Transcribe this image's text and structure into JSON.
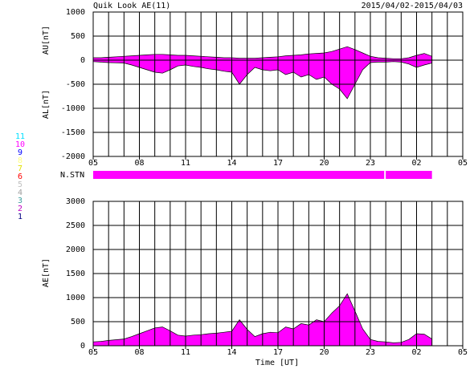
{
  "title": "Quik Look AE(11)",
  "date_range": "2015/04/02-2015/04/03",
  "station_legend": {
    "labels": [
      "11",
      "10",
      "9",
      "8",
      "7",
      "6",
      "5",
      "4",
      "3",
      "2",
      "1"
    ],
    "colors": [
      "#00e0ff",
      "#ff00ff",
      "#0000ff",
      "#ffff80",
      "#e0e000",
      "#ff0000",
      "#c0c0c0",
      "#a0a0a0",
      "#40a0a0",
      "#c000c0",
      "#000080"
    ]
  },
  "chart_data": [
    {
      "type": "area",
      "ylabels": [
        "AU[nT]",
        "AL[nT]"
      ],
      "x": [
        5,
        5.5,
        6,
        6.5,
        7,
        7.5,
        8,
        8.5,
        9,
        9.5,
        10,
        10.5,
        11,
        11.5,
        12,
        12.5,
        13,
        13.5,
        14,
        14.5,
        15,
        15.5,
        16,
        16.5,
        17,
        17.5,
        18,
        18.5,
        19,
        19.5,
        20,
        20.5,
        21,
        21.5,
        22,
        22.5,
        23,
        23.5,
        24,
        24.5,
        25,
        25.5,
        26,
        26.5,
        27
      ],
      "series": [
        {
          "color": "#ff00ff",
          "values": [
            50,
            50,
            60,
            70,
            80,
            90,
            100,
            110,
            120,
            120,
            110,
            100,
            100,
            90,
            80,
            70,
            60,
            50,
            50,
            40,
            40,
            40,
            50,
            60,
            70,
            90,
            100,
            110,
            130,
            140,
            150,
            180,
            230,
            280,
            220,
            150,
            80,
            50,
            40,
            30,
            30,
            50,
            100,
            140,
            80
          ]
        },
        {
          "color": "#ff00ff",
          "values": [
            -30,
            -40,
            -50,
            -55,
            -60,
            -100,
            -150,
            -200,
            -250,
            -270,
            -200,
            -120,
            -100,
            -130,
            -150,
            -180,
            -200,
            -230,
            -250,
            -500,
            -300,
            -150,
            -200,
            -220,
            -200,
            -300,
            -250,
            -350,
            -300,
            -400,
            -350,
            -500,
            -600,
            -800,
            -500,
            -200,
            -50,
            -40,
            -40,
            -30,
            -40,
            -80,
            -150,
            -100,
            -60
          ]
        }
      ],
      "xlim": [
        5,
        29
      ],
      "ylim": [
        -2000,
        1000
      ],
      "xticks": [
        {
          "value": 5,
          "label": "05"
        },
        {
          "value": 8,
          "label": "08"
        },
        11,
        14,
        17,
        20,
        23,
        {
          "value": 26,
          "label": "02"
        },
        {
          "value": 29,
          "label": "05"
        }
      ],
      "xgrid": [
        5,
        6,
        7,
        8,
        9,
        10,
        11,
        12,
        13,
        14,
        15,
        16,
        17,
        18,
        19,
        20,
        21,
        22,
        23,
        24,
        25,
        26,
        27,
        28,
        29
      ],
      "yticks": [
        1000,
        500,
        0,
        -500,
        -1000,
        -1500,
        -2000
      ],
      "grid": true
    },
    {
      "type": "band",
      "label": "N.STN",
      "color": "#ff00ff",
      "xlim": [
        5,
        29
      ],
      "segments": [
        {
          "start": 5,
          "end": 23.9
        },
        {
          "start": 24,
          "end": 27
        }
      ]
    },
    {
      "type": "area",
      "ylabels": [
        "AE[nT]"
      ],
      "xlabel": "Time [UT]",
      "x": [
        5,
        5.5,
        6,
        6.5,
        7,
        7.5,
        8,
        8.5,
        9,
        9.5,
        10,
        10.5,
        11,
        11.5,
        12,
        12.5,
        13,
        13.5,
        14,
        14.5,
        15,
        15.5,
        16,
        16.5,
        17,
        17.5,
        18,
        18.5,
        19,
        19.5,
        20,
        20.5,
        21,
        21.5,
        22,
        22.5,
        23,
        23.5,
        24,
        24.5,
        25,
        25.5,
        26,
        26.5,
        27
      ],
      "series": [
        {
          "color": "#ff00ff",
          "values": [
            80,
            90,
            110,
            125,
            140,
            190,
            250,
            310,
            370,
            390,
            310,
            220,
            200,
            220,
            230,
            250,
            260,
            280,
            300,
            540,
            340,
            190,
            250,
            280,
            270,
            390,
            350,
            460,
            430,
            540,
            500,
            680,
            830,
            1080,
            720,
            350,
            130,
            90,
            80,
            60,
            70,
            130,
            250,
            240,
            140
          ]
        }
      ],
      "xlim": [
        5,
        29
      ],
      "ylim": [
        0,
        3000
      ],
      "xticks": [
        {
          "value": 5,
          "label": "05"
        },
        {
          "value": 8,
          "label": "08"
        },
        11,
        14,
        17,
        20,
        23,
        {
          "value": 26,
          "label": "02"
        },
        {
          "value": 29,
          "label": "05"
        }
      ],
      "xgrid": [
        5,
        6,
        7,
        8,
        9,
        10,
        11,
        12,
        13,
        14,
        15,
        16,
        17,
        18,
        19,
        20,
        21,
        22,
        23,
        24,
        25,
        26,
        27,
        28,
        29
      ],
      "yticks": [
        3000,
        2500,
        2000,
        1500,
        1000,
        500,
        0
      ],
      "grid": true
    }
  ]
}
